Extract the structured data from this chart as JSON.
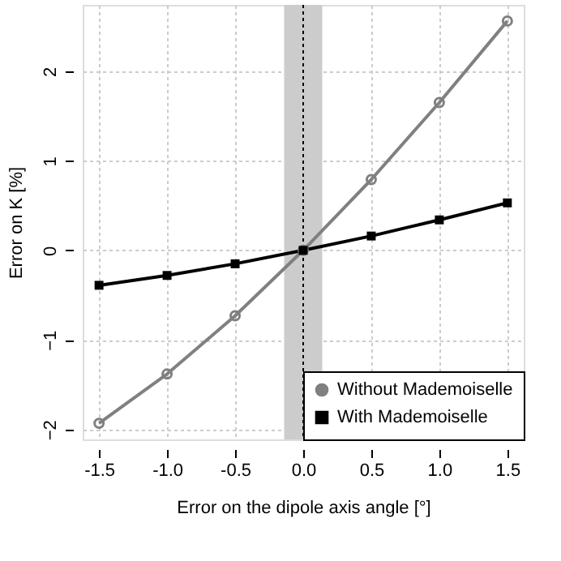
{
  "chart_data": {
    "type": "line",
    "xlabel": "Error on the dipole axis angle [°]",
    "ylabel": "Error on K [%]",
    "x": [
      -1.5,
      -1.0,
      -0.5,
      0.0,
      0.5,
      1.0,
      1.5
    ],
    "series": [
      {
        "name": "Without Mademoiselle",
        "color": "#808080",
        "marker": "circle",
        "values": [
          -1.93,
          -1.38,
          -0.73,
          0.0,
          0.79,
          1.65,
          2.56
        ]
      },
      {
        "name": "With Mademoiselle",
        "color": "#000000",
        "marker": "square",
        "values": [
          -0.39,
          -0.28,
          -0.15,
          0.0,
          0.16,
          0.34,
          0.53
        ]
      }
    ],
    "xlim": [
      -1.62,
      1.62
    ],
    "ylim": [
      -2.11,
      2.74
    ],
    "xticks": [
      {
        "value": -1.5,
        "label": "-1.5"
      },
      {
        "value": -1.0,
        "label": "-1.0"
      },
      {
        "value": -0.5,
        "label": "-0.5"
      },
      {
        "value": 0,
        "label": "0.0"
      },
      {
        "value": 0.5,
        "label": "0.5"
      },
      {
        "value": 1.0,
        "label": "1.0"
      },
      {
        "value": 1.5,
        "label": "1.5"
      }
    ],
    "yticks": [
      -2,
      -1,
      0,
      1,
      2
    ],
    "ref_lines": [
      {
        "axis": "x",
        "value": 0,
        "color": "#000000",
        "line_style": "dotted"
      }
    ],
    "bands": [
      {
        "axis": "x",
        "from": -0.14,
        "to": 0.14,
        "color": "#cccccc"
      }
    ],
    "grid": true,
    "legend": "bottom right",
    "line_style": "solid"
  }
}
